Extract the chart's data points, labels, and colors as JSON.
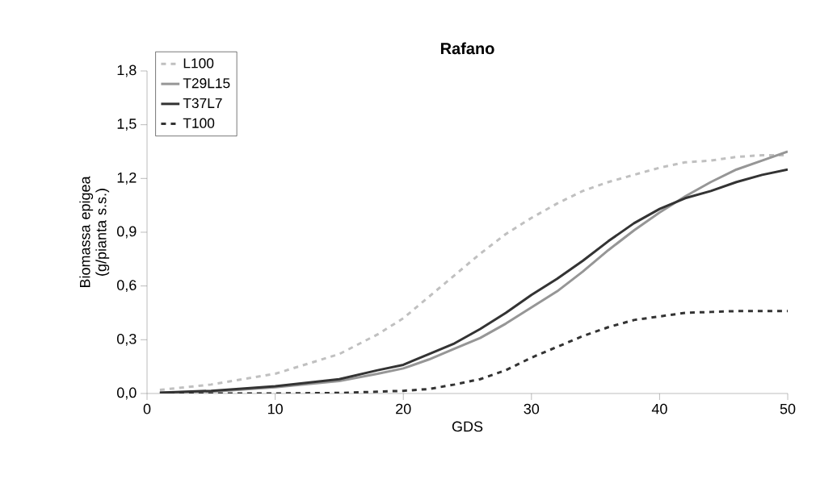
{
  "chart_data": {
    "type": "line",
    "title": "Rafano",
    "xlabel": "GDS",
    "ylabel": "Biomassa epigea (g/pianta s.s.)",
    "x": [
      1,
      5,
      10,
      15,
      18,
      20,
      22,
      24,
      26,
      28,
      30,
      32,
      34,
      36,
      38,
      40,
      42,
      44,
      46,
      48,
      50
    ],
    "series": [
      {
        "name": "L100",
        "color": "#c0c0c0",
        "line_style": "dashed",
        "values": [
          0.02,
          0.05,
          0.11,
          0.22,
          0.33,
          0.42,
          0.54,
          0.66,
          0.78,
          0.89,
          0.98,
          1.06,
          1.13,
          1.18,
          1.22,
          1.26,
          1.29,
          1.3,
          1.32,
          1.33,
          1.33
        ]
      },
      {
        "name": "T29L15",
        "color": "#969696",
        "line_style": "solid",
        "values": [
          0.005,
          0.01,
          0.035,
          0.07,
          0.11,
          0.14,
          0.19,
          0.25,
          0.31,
          0.39,
          0.48,
          0.57,
          0.68,
          0.8,
          0.91,
          1.01,
          1.1,
          1.18,
          1.25,
          1.3,
          1.35
        ]
      },
      {
        "name": "T37L7",
        "color": "#333333",
        "line_style": "solid",
        "values": [
          0.005,
          0.015,
          0.04,
          0.08,
          0.13,
          0.16,
          0.22,
          0.28,
          0.36,
          0.45,
          0.55,
          0.64,
          0.74,
          0.85,
          0.95,
          1.03,
          1.09,
          1.13,
          1.18,
          1.22,
          1.25
        ]
      },
      {
        "name": "T100",
        "color": "#333333",
        "line_style": "dashed",
        "values": [
          0,
          0,
          0,
          0.003,
          0.01,
          0.015,
          0.025,
          0.05,
          0.08,
          0.13,
          0.2,
          0.26,
          0.32,
          0.37,
          0.41,
          0.43,
          0.45,
          0.455,
          0.46,
          0.46,
          0.46
        ]
      }
    ],
    "xlim": [
      0,
      50
    ],
    "xticks": [
      0,
      10,
      20,
      30,
      40,
      50
    ],
    "ylim": [
      0,
      1.8
    ],
    "yticks": [
      {
        "value": 0,
        "label": "0,0"
      },
      {
        "value": 0.3,
        "label": "0,3"
      },
      {
        "value": 0.6,
        "label": "0,6"
      },
      {
        "value": 0.9,
        "label": "0,9"
      },
      {
        "value": 1.2,
        "label": "1,2"
      },
      {
        "value": 1.5,
        "label": "1,5"
      },
      {
        "value": 1.8,
        "label": "1,8"
      }
    ],
    "grid": false,
    "legend": "top left",
    "marker": "none"
  }
}
